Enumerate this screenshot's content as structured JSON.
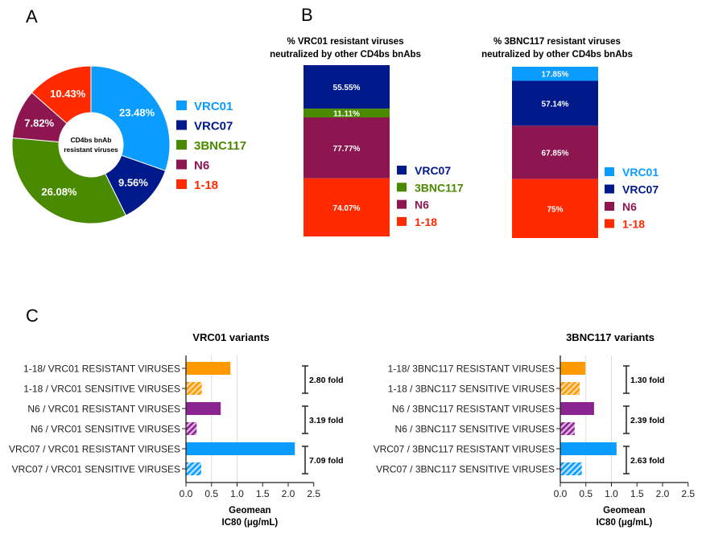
{
  "panel_labels": {
    "a": "A",
    "b": "B",
    "c": "C"
  },
  "chart_data": [
    {
      "type": "pie",
      "panel": "A",
      "donut": true,
      "center_label": [
        "CD4bs bnAb",
        "resistant viruses"
      ],
      "slices": [
        {
          "name": "VRC01",
          "label": "23.48%",
          "value": 23.48,
          "color": "#0a9cff"
        },
        {
          "name": "VRC07",
          "label": "9.56%",
          "value": 9.56,
          "color": "#001a8c"
        },
        {
          "name": "3BNC117",
          "label": "26.08%",
          "value": 26.08,
          "color": "#4a8a00"
        },
        {
          "name": "N6",
          "label": "7.82%",
          "value": 7.82,
          "color": "#8e1650"
        },
        {
          "name": "1-18",
          "label": "10.43%",
          "value": 10.43,
          "color": "#ff2a00"
        }
      ],
      "legend": [
        "VRC01",
        "VRC07",
        "3BNC117",
        "N6",
        "1-18"
      ],
      "legend_placement": "right"
    },
    {
      "type": "bar",
      "stacked": true,
      "panel": "B",
      "title": [
        "% VRC01 resistant viruses",
        "neutralized by other CD4bs bnAbs"
      ],
      "series": [
        {
          "name": "VRC07",
          "label": "55.55%",
          "value": 55.55,
          "color": "#001a8c"
        },
        {
          "name": "3BNC117",
          "label": "11.11%",
          "value": 11.11,
          "color": "#4a8a00"
        },
        {
          "name": "N6",
          "label": "77.77%",
          "value": 77.77,
          "color": "#8e1650"
        },
        {
          "name": "1-18",
          "label": "74.07%",
          "value": 74.07,
          "color": "#ff2a00"
        }
      ],
      "legend_placement": "right"
    },
    {
      "type": "bar",
      "stacked": true,
      "panel": "B",
      "title": [
        "% 3BNC117 resistant viruses",
        "neutralized by other  CD4bs bnAbs"
      ],
      "series": [
        {
          "name": "VRC01",
          "label": "17.85%",
          "value": 17.85,
          "color": "#0a9cff"
        },
        {
          "name": "VRC07",
          "label": "57.14%",
          "value": 57.14,
          "color": "#001a8c"
        },
        {
          "name": "N6",
          "label": "67.85%",
          "value": 67.85,
          "color": "#8e1650"
        },
        {
          "name": "1-18",
          "label": "75%",
          "value": 75,
          "color": "#ff2a00"
        }
      ],
      "legend_placement": "right"
    },
    {
      "type": "bar",
      "orientation": "horizontal",
      "panel": "C",
      "title": "VRC01 variants",
      "xlabel": [
        "Geomean",
        "IC80 (μg/mL)"
      ],
      "xlim": [
        0,
        2.5
      ],
      "xticks": [
        "0.0",
        "0.5",
        "1.0",
        "1.5",
        "2.0",
        "2.5"
      ],
      "grid": "vertical",
      "categories": [
        "1-18/ VRC01 RESISTANT VIRUSES",
        "1-18 / VRC01 SENSITIVE VIRUSES",
        "N6 / VRC01 RESISTANT VIRUSES",
        "N6 / VRC01 SENSITIVE VIRUSES",
        "VRC07 / VRC01 RESISTANT VIRUSES",
        "VRC07  / VRC01 SENSITIVE VIRUSES"
      ],
      "values": [
        0.87,
        0.31,
        0.68,
        0.21,
        2.13,
        0.3
      ],
      "colors": [
        "#ff9900",
        "#ff9900",
        "#8b2391",
        "#8b2391",
        "#0a9cff",
        "#0a9cff"
      ],
      "hatched": [
        false,
        true,
        false,
        true,
        false,
        true
      ],
      "annotations": [
        "2.80 fold",
        "3.19 fold",
        "7.09 fold"
      ]
    },
    {
      "type": "bar",
      "orientation": "horizontal",
      "panel": "C",
      "title": "3BNC117 variants",
      "xlabel": [
        "Geomean",
        "IC80 (μg/mL)"
      ],
      "xlim": [
        0,
        2.5
      ],
      "xticks": [
        "0.0",
        "0.5",
        "1.0",
        "1.5",
        "2.0",
        "2.5"
      ],
      "grid": "vertical",
      "categories": [
        "1-18/ 3BNC117 RESISTANT VIRUSES",
        "1-18 / 3BNC117 SENSITIVE VIRUSES",
        "N6 / 3BNC117 RESISTANT VIRUSES",
        "N6 / 3BNC117 SENSITIVE VIRUSES",
        "VRC07 / 3BNC117 RESISTANT VIRUSES",
        "VRC07  / 3BNC117 SENSITIVE VIRUSES"
      ],
      "values": [
        0.49,
        0.38,
        0.66,
        0.28,
        1.1,
        0.42
      ],
      "colors": [
        "#ff9900",
        "#ff9900",
        "#8b2391",
        "#8b2391",
        "#0a9cff",
        "#0a9cff"
      ],
      "hatched": [
        false,
        true,
        false,
        true,
        false,
        true
      ],
      "annotations": [
        "1.30 fold",
        "2.39 fold",
        "2.63 fold"
      ]
    }
  ]
}
